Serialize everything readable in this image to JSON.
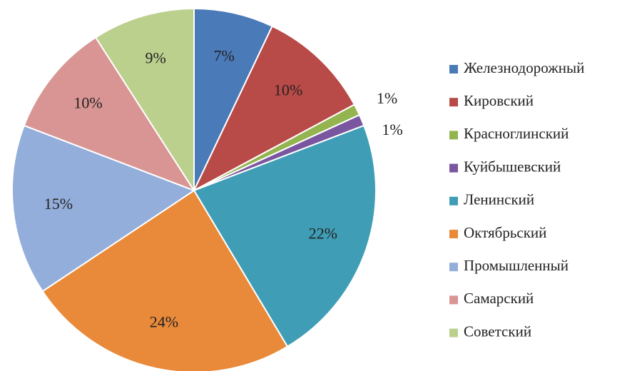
{
  "chart_data": {
    "type": "pie",
    "categories": [
      "Железнодорожный",
      "Кировский",
      "Красноглинский",
      "Куйбышевский",
      "Ленинский",
      "Октябрьский",
      "Промышленный",
      "Самарский",
      "Советский"
    ],
    "values": [
      7,
      10,
      1,
      1,
      22,
      24,
      15,
      10,
      9
    ],
    "value_labels": [
      "7%",
      "10%",
      "1%",
      "1%",
      "22%",
      "24%",
      "15%",
      "10%",
      "9%"
    ],
    "colors": [
      "#4a7ab8",
      "#b84a47",
      "#93b44f",
      "#7b56a0",
      "#3f9db5",
      "#e88a3a",
      "#94aedb",
      "#d89594",
      "#bcd08e"
    ],
    "legend": "right"
  }
}
